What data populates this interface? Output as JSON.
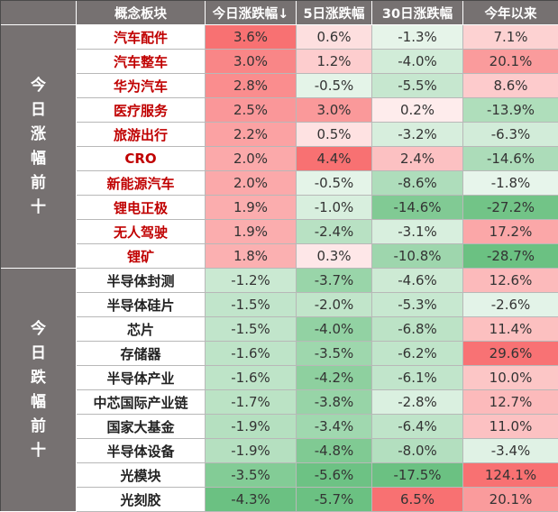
{
  "header": {
    "col_name": "概念板块",
    "col_today": "今日涨跌幅↓",
    "col_5d": "5日涨跌幅",
    "col_30d": "30日涨跌幅",
    "col_ytd": "今年以来"
  },
  "groups": {
    "top": [
      "今",
      "日",
      "涨",
      "幅",
      "前",
      "十"
    ],
    "bottom": [
      "今",
      "日",
      "跌",
      "幅",
      "前",
      "十"
    ]
  },
  "rows": [
    {
      "name": "汽车配件",
      "group": "top",
      "today": "3.6%",
      "d5": "0.6%",
      "d30": "-1.3%",
      "ytd": "7.1%"
    },
    {
      "name": "汽车整车",
      "group": "top",
      "today": "3.0%",
      "d5": "1.2%",
      "d30": "-4.0%",
      "ytd": "20.1%"
    },
    {
      "name": "华为汽车",
      "group": "top",
      "today": "2.8%",
      "d5": "-0.5%",
      "d30": "-5.5%",
      "ytd": "8.6%"
    },
    {
      "name": "医疗服务",
      "group": "top",
      "today": "2.5%",
      "d5": "3.0%",
      "d30": "0.2%",
      "ytd": "-13.9%"
    },
    {
      "name": "旅游出行",
      "group": "top",
      "today": "2.2%",
      "d5": "0.5%",
      "d30": "-3.2%",
      "ytd": "-6.3%"
    },
    {
      "name": "CRO",
      "group": "top",
      "today": "2.0%",
      "d5": "4.4%",
      "d30": "2.4%",
      "ytd": "-14.6%"
    },
    {
      "name": "新能源汽车",
      "group": "top",
      "today": "2.0%",
      "d5": "-0.5%",
      "d30": "-8.6%",
      "ytd": "-1.8%"
    },
    {
      "name": "锂电正极",
      "group": "top",
      "today": "1.9%",
      "d5": "-1.0%",
      "d30": "-14.6%",
      "ytd": "-27.2%"
    },
    {
      "name": "无人驾驶",
      "group": "top",
      "today": "1.9%",
      "d5": "-2.4%",
      "d30": "-3.1%",
      "ytd": "17.2%"
    },
    {
      "name": "锂矿",
      "group": "top",
      "today": "1.8%",
      "d5": "0.3%",
      "d30": "-10.8%",
      "ytd": "-28.7%"
    },
    {
      "name": "半导体封测",
      "group": "bottom",
      "today": "-1.2%",
      "d5": "-3.7%",
      "d30": "-4.6%",
      "ytd": "12.6%"
    },
    {
      "name": "半导体硅片",
      "group": "bottom",
      "today": "-1.5%",
      "d5": "-2.0%",
      "d30": "-5.3%",
      "ytd": "-2.6%"
    },
    {
      "name": "芯片",
      "group": "bottom",
      "today": "-1.5%",
      "d5": "-4.0%",
      "d30": "-6.8%",
      "ytd": "11.4%"
    },
    {
      "name": "存储器",
      "group": "bottom",
      "today": "-1.6%",
      "d5": "-3.5%",
      "d30": "-6.2%",
      "ytd": "29.6%"
    },
    {
      "name": "半导体产业",
      "group": "bottom",
      "today": "-1.6%",
      "d5": "-4.2%",
      "d30": "-6.1%",
      "ytd": "10.0%"
    },
    {
      "name": "中芯国际产业链",
      "group": "bottom",
      "today": "-1.7%",
      "d5": "-3.8%",
      "d30": "-2.8%",
      "ytd": "12.7%"
    },
    {
      "name": "国家大基金",
      "group": "bottom",
      "today": "-1.9%",
      "d5": "-3.4%",
      "d30": "-6.4%",
      "ytd": "11.0%"
    },
    {
      "name": "半导体设备",
      "group": "bottom",
      "today": "-1.9%",
      "d5": "-4.8%",
      "d30": "-8.0%",
      "ytd": "-3.4%"
    },
    {
      "name": "光模块",
      "group": "bottom",
      "today": "-3.5%",
      "d5": "-5.6%",
      "d30": "-17.5%",
      "ytd": "124.1%"
    },
    {
      "name": "光刻胶",
      "group": "bottom",
      "today": "-4.3%",
      "d5": "-5.7%",
      "d30": "6.5%",
      "ytd": "20.1%"
    }
  ],
  "colors": {
    "header_bg": "#767171",
    "header_text": "#ffffff",
    "top_name": "#c00000",
    "bottom_name": "#3f5f1a",
    "neutral": "#ffffff",
    "positive_max": "#f8696b",
    "negative_max": "#63be7b"
  }
}
